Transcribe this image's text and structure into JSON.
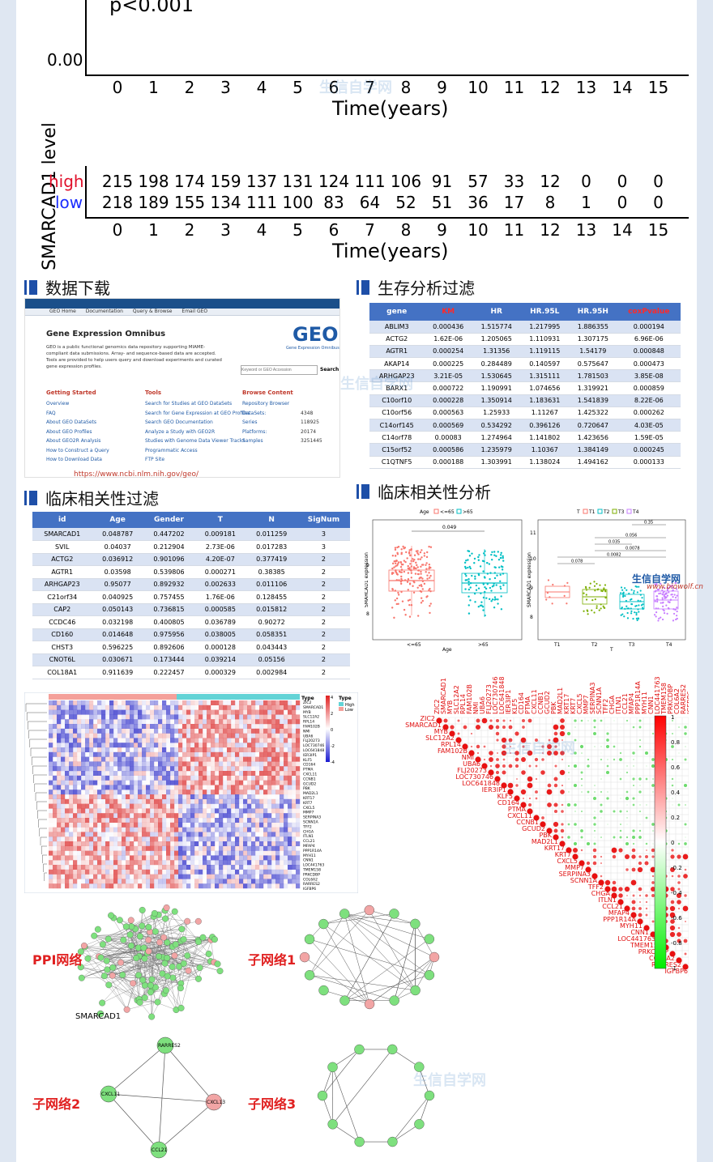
{
  "km": {
    "pvalue": "p<0.001",
    "y_tick": "0.00",
    "x_ticks": [
      "0",
      "1",
      "2",
      "3",
      "4",
      "5",
      "6",
      "7",
      "8",
      "9",
      "10",
      "11",
      "12",
      "13",
      "14",
      "15"
    ],
    "x_title": "Time(years)",
    "risk_title": "SMARCAD1 level",
    "high_label": "high",
    "low_label": "low",
    "high_counts": [
      "215",
      "198",
      "174",
      "159",
      "137",
      "131",
      "124",
      "111",
      "106",
      "91",
      "57",
      "33",
      "12",
      "0",
      "0",
      "0"
    ],
    "low_counts": [
      "218",
      "189",
      "155",
      "134",
      "111",
      "100",
      "83",
      "64",
      "52",
      "51",
      "36",
      "17",
      "8",
      "1",
      "0",
      "0"
    ],
    "high_color": "#e0102a",
    "low_color": "#1a2cff"
  },
  "sections": {
    "download": "数据下载",
    "survival": "生存分析过滤",
    "clinical_filter": "临床相关性过滤",
    "clinical_analysis": "临床相关性分析"
  },
  "geo": {
    "nav": [
      "GEO Home",
      "Documentation",
      "Query & Browse",
      "Email GEO"
    ],
    "title": "Gene Expression Omnibus",
    "desc": "GEO is a public functional genomics data repository supporting MIAME-compliant data submissions. Array- and sequence-based data are accepted. Tools are provided to help users query and download experiments and curated gene expression profiles.",
    "logo": "GEO",
    "logo_sub": "Gene Expression Omnibus",
    "search_placeholder": "Keyword or GEO Accession",
    "search_button": "Search",
    "col1_head": "Getting Started",
    "col1": [
      "Overview",
      "FAQ",
      "About GEO DataSets",
      "About GEO Profiles",
      "About GEO2R Analysis",
      "How to Construct a Query",
      "How to Download Data"
    ],
    "col2_head": "Tools",
    "col2": [
      "Search for Studies at GEO DataSets",
      "Search for Gene Expression at GEO Profiles",
      "Search GEO Documentation",
      "Analyze a Study with GEO2R",
      "Studies with Genome Data Viewer Tracks",
      "Programmatic Access",
      "FTP Site"
    ],
    "col3_head": "Browse Content",
    "col3": [
      [
        "Repository Browser",
        ""
      ],
      [
        "DataSets:",
        "4348"
      ],
      [
        "Series",
        "118925"
      ],
      [
        "Platforms:",
        "20174"
      ],
      [
        "Samples",
        "3251445"
      ]
    ],
    "url": "https://www.ncbi.nlm.nih.gov/geo/"
  },
  "surv_table": {
    "headers": [
      "gene",
      "KM",
      "HR",
      "HR.95L",
      "HR.95H",
      "coxPvalue"
    ],
    "rows": [
      [
        "ABLIM3",
        "0.000436",
        "1.515774",
        "1.217995",
        "1.886355",
        "0.000194"
      ],
      [
        "ACTG2",
        "1.62E-06",
        "1.205065",
        "1.110931",
        "1.307175",
        "6.96E-06"
      ],
      [
        "AGTR1",
        "0.000254",
        "1.31356",
        "1.119115",
        "1.54179",
        "0.000848"
      ],
      [
        "AKAP14",
        "0.000225",
        "0.284489",
        "0.140597",
        "0.575647",
        "0.000473"
      ],
      [
        "ARHGAP23",
        "3.21E-05",
        "1.530645",
        "1.315111",
        "1.781503",
        "3.85E-08"
      ],
      [
        "BARX1",
        "0.000722",
        "1.190991",
        "1.074656",
        "1.319921",
        "0.000859"
      ],
      [
        "C10orf10",
        "0.000228",
        "1.350914",
        "1.183631",
        "1.541839",
        "8.22E-06"
      ],
      [
        "C10orf56",
        "0.000563",
        "1.25933",
        "1.11267",
        "1.425322",
        "0.000262"
      ],
      [
        "C14orf145",
        "0.000569",
        "0.534292",
        "0.396126",
        "0.720647",
        "4.03E-05"
      ],
      [
        "C14orf78",
        "0.00083",
        "1.274964",
        "1.141802",
        "1.423656",
        "1.59E-05"
      ],
      [
        "C15orf52",
        "0.000586",
        "1.235979",
        "1.10367",
        "1.384149",
        "0.000245"
      ],
      [
        "C1QTNF5",
        "0.000188",
        "1.303991",
        "1.138024",
        "1.494162",
        "0.000133"
      ]
    ]
  },
  "clin_table": {
    "headers": [
      "id",
      "Age",
      "Gender",
      "T",
      "N",
      "SigNum"
    ],
    "rows": [
      [
        "SMARCAD1",
        "0.048787",
        "0.447202",
        "0.009181",
        "0.011259",
        "3"
      ],
      [
        "SVIL",
        "0.04037",
        "0.212904",
        "2.73E-06",
        "0.017283",
        "3"
      ],
      [
        "ACTG2",
        "0.036912",
        "0.901096",
        "4.20E-07",
        "0.377419",
        "2"
      ],
      [
        "AGTR1",
        "0.03598",
        "0.539806",
        "0.000271",
        "0.38385",
        "2"
      ],
      [
        "ARHGAP23",
        "0.95077",
        "0.892932",
        "0.002633",
        "0.011106",
        "2"
      ],
      [
        "C21orf34",
        "0.040925",
        "0.757455",
        "1.76E-06",
        "0.128455",
        "2"
      ],
      [
        "CAP2",
        "0.050143",
        "0.736815",
        "0.000585",
        "0.015812",
        "2"
      ],
      [
        "CCDC46",
        "0.032198",
        "0.400805",
        "0.036789",
        "0.90272",
        "2"
      ],
      [
        "CD160",
        "0.014648",
        "0.975956",
        "0.038005",
        "0.058351",
        "2"
      ],
      [
        "CHST3",
        "0.596225",
        "0.892606",
        "0.000128",
        "0.043443",
        "2"
      ],
      [
        "CNOT6L",
        "0.030671",
        "0.173444",
        "0.039214",
        "0.05156",
        "2"
      ],
      [
        "COL18A1",
        "0.911639",
        "0.222457",
        "0.000329",
        "0.002984",
        "2"
      ]
    ]
  },
  "boxplots": {
    "left": {
      "legend_title": "Age",
      "legend": [
        "<=65",
        ">65"
      ],
      "xlabel": "Age",
      "ylabel": "SMARCAD1 expression",
      "pval": "0.049",
      "y_ticks": [
        "8",
        "9"
      ]
    },
    "right": {
      "legend_title": "T",
      "legend": [
        "T1",
        "T2",
        "T3",
        "T4"
      ],
      "xlabel": "T",
      "ylabel": "SMARCAD1 expression",
      "pvals": [
        "0.35",
        "0.056",
        "0.035",
        "0.0078",
        "0.0082",
        "0.078"
      ],
      "y_ticks": [
        "8",
        "9",
        "10",
        "11"
      ]
    },
    "colors": [
      "#f8766d",
      "#00bfc4",
      "#7cae00",
      "#c77cff"
    ]
  },
  "heatmap": {
    "legend_title": "Type",
    "legend": [
      "High",
      "Low"
    ],
    "scale_ticks": [
      "4",
      "2",
      "0",
      "-2",
      "-4"
    ],
    "genes": [
      "ZIC2",
      "SMARCAD1",
      "MYB",
      "SLC12A2",
      "RPL14",
      "FAM102B",
      "NMI",
      "UBA6",
      "FLJ20273",
      "LOC730746",
      "LOC641848",
      "IER3IP1",
      "KLF5",
      "CD164",
      "PTMA",
      "CXCL11",
      "CCNB1",
      "GCUD2",
      "PBK",
      "MAD2L1",
      "KRT17",
      "KRT7",
      "CXCL5",
      "MMP7",
      "SERPINA3",
      "SCNN1A",
      "TFF2",
      "CHGA",
      "ITLN1",
      "CCL21",
      "MFAP4",
      "PPP1R14A",
      "MYH11",
      "CNN1",
      "LOC441763",
      "TMEM158",
      "PRKCDBP",
      "COL6A2",
      "RARRES2",
      "IGFBP6"
    ]
  },
  "corr": {
    "scale_ticks": [
      "1",
      "0.8",
      "0.6",
      "0.4",
      "0.2",
      "0",
      "-0.2",
      "-0.4",
      "-0.6",
      "-0.8",
      "-1"
    ]
  },
  "networks": {
    "ppi": "PPI网络",
    "sub1": "子网络1",
    "sub2": "子网络2",
    "sub3": "子网络3",
    "smarcad1": "SMARCAD1",
    "sub2_nodes": [
      "RARRES2",
      "CXCL11",
      "CXCL13",
      "CCL21"
    ]
  },
  "watermark": {
    "cn": "生信自学网",
    "url": "www.biowolf.cn"
  }
}
